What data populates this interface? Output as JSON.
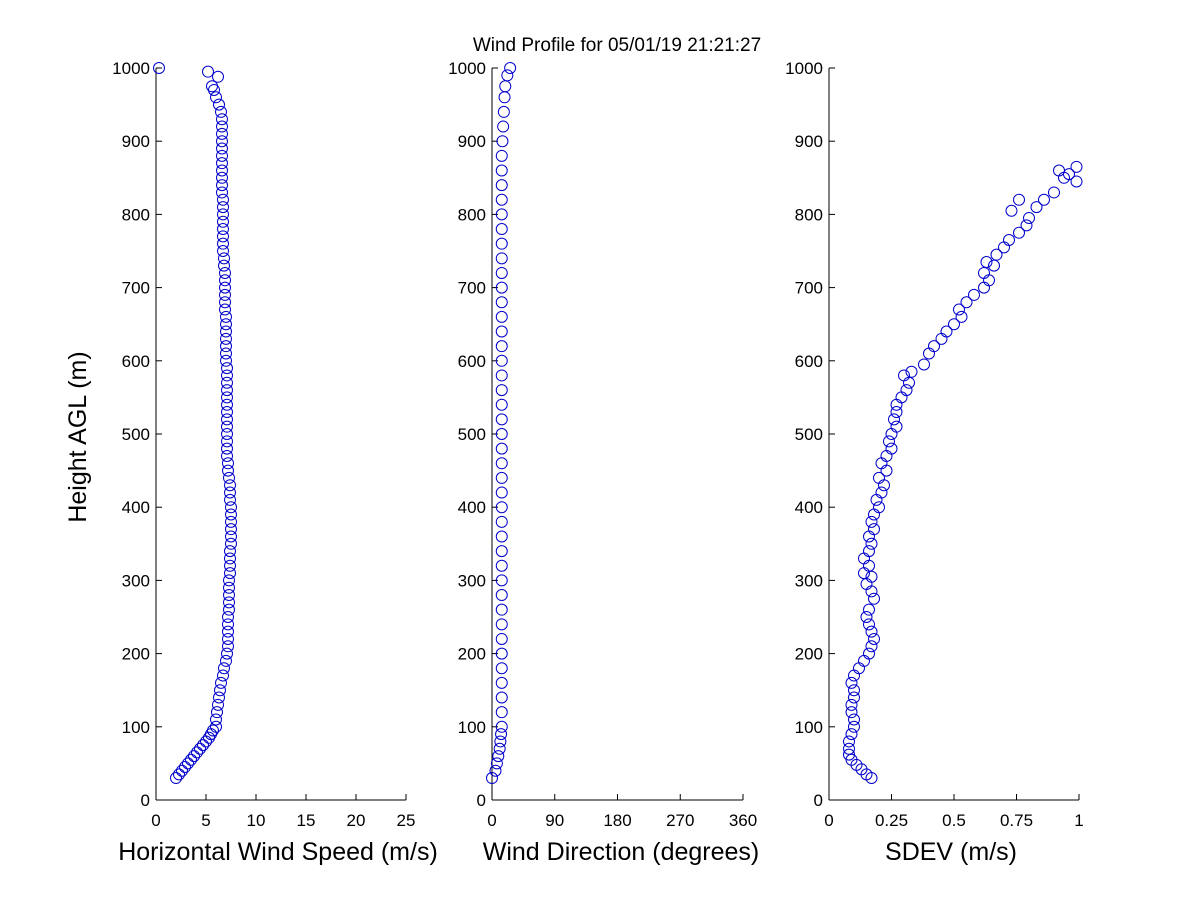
{
  "chart_data": {
    "title": "Wind Profile for  05/01/19 21:21:27",
    "ylabel": "Height AGL (m)",
    "ylim": [
      0,
      1000
    ],
    "yticks": [
      0,
      100,
      200,
      300,
      400,
      500,
      600,
      700,
      800,
      900,
      1000
    ],
    "marker_color": "#0000cc",
    "panels": [
      {
        "type": "scatter",
        "xlabel": "Horizontal Wind Speed (m/s)",
        "xlim": [
          0,
          25
        ],
        "xticks": [
          "0",
          "5",
          "10",
          "15",
          "20",
          "25"
        ],
        "xtick_values": [
          0,
          5,
          10,
          15,
          20,
          25
        ],
        "points": [
          [
            2.0,
            30
          ],
          [
            2.3,
            35
          ],
          [
            2.6,
            40
          ],
          [
            2.9,
            45
          ],
          [
            3.2,
            50
          ],
          [
            3.5,
            55
          ],
          [
            3.8,
            60
          ],
          [
            4.1,
            65
          ],
          [
            4.4,
            70
          ],
          [
            4.7,
            75
          ],
          [
            5.0,
            80
          ],
          [
            5.3,
            85
          ],
          [
            5.5,
            90
          ],
          [
            5.7,
            95
          ],
          [
            6.0,
            100
          ],
          [
            6.0,
            110
          ],
          [
            6.1,
            120
          ],
          [
            6.2,
            130
          ],
          [
            6.3,
            140
          ],
          [
            6.4,
            150
          ],
          [
            6.5,
            160
          ],
          [
            6.7,
            170
          ],
          [
            6.8,
            180
          ],
          [
            7.0,
            190
          ],
          [
            7.1,
            200
          ],
          [
            7.2,
            210
          ],
          [
            7.2,
            220
          ],
          [
            7.2,
            230
          ],
          [
            7.2,
            240
          ],
          [
            7.2,
            250
          ],
          [
            7.3,
            260
          ],
          [
            7.3,
            270
          ],
          [
            7.3,
            280
          ],
          [
            7.3,
            290
          ],
          [
            7.3,
            300
          ],
          [
            7.4,
            310
          ],
          [
            7.4,
            320
          ],
          [
            7.4,
            330
          ],
          [
            7.4,
            340
          ],
          [
            7.5,
            350
          ],
          [
            7.5,
            360
          ],
          [
            7.5,
            370
          ],
          [
            7.5,
            380
          ],
          [
            7.5,
            390
          ],
          [
            7.5,
            400
          ],
          [
            7.4,
            410
          ],
          [
            7.4,
            420
          ],
          [
            7.4,
            430
          ],
          [
            7.3,
            440
          ],
          [
            7.2,
            450
          ],
          [
            7.2,
            460
          ],
          [
            7.1,
            470
          ],
          [
            7.1,
            480
          ],
          [
            7.1,
            490
          ],
          [
            7.1,
            500
          ],
          [
            7.1,
            510
          ],
          [
            7.1,
            520
          ],
          [
            7.1,
            530
          ],
          [
            7.1,
            540
          ],
          [
            7.1,
            550
          ],
          [
            7.1,
            560
          ],
          [
            7.1,
            570
          ],
          [
            7.1,
            580
          ],
          [
            7.1,
            590
          ],
          [
            7.0,
            600
          ],
          [
            7.0,
            610
          ],
          [
            7.0,
            620
          ],
          [
            7.0,
            630
          ],
          [
            7.0,
            640
          ],
          [
            7.0,
            650
          ],
          [
            7.0,
            660
          ],
          [
            6.9,
            670
          ],
          [
            6.9,
            680
          ],
          [
            6.9,
            690
          ],
          [
            6.9,
            700
          ],
          [
            6.9,
            710
          ],
          [
            6.9,
            720
          ],
          [
            6.8,
            730
          ],
          [
            6.8,
            740
          ],
          [
            6.7,
            750
          ],
          [
            6.7,
            760
          ],
          [
            6.7,
            770
          ],
          [
            6.7,
            780
          ],
          [
            6.7,
            790
          ],
          [
            6.7,
            800
          ],
          [
            6.7,
            810
          ],
          [
            6.7,
            820
          ],
          [
            6.6,
            830
          ],
          [
            6.6,
            840
          ],
          [
            6.6,
            850
          ],
          [
            6.6,
            860
          ],
          [
            6.6,
            870
          ],
          [
            6.6,
            880
          ],
          [
            6.6,
            890
          ],
          [
            6.6,
            900
          ],
          [
            6.6,
            910
          ],
          [
            6.6,
            920
          ],
          [
            6.6,
            930
          ],
          [
            6.5,
            940
          ],
          [
            6.3,
            950
          ],
          [
            6.0,
            960
          ],
          [
            5.8,
            970
          ],
          [
            5.6,
            975
          ],
          [
            6.2,
            988
          ],
          [
            5.2,
            995
          ],
          [
            0.3,
            1000
          ]
        ]
      },
      {
        "type": "scatter",
        "xlabel": "Wind Direction (degrees)",
        "xlim": [
          0,
          360
        ],
        "xticks": [
          "0",
          "90",
          "180",
          "270",
          "360"
        ],
        "xtick_values": [
          0,
          90,
          180,
          270,
          360
        ],
        "points": [
          [
            0,
            30
          ],
          [
            5,
            40
          ],
          [
            7,
            50
          ],
          [
            9,
            60
          ],
          [
            11,
            70
          ],
          [
            12,
            80
          ],
          [
            13,
            90
          ],
          [
            14,
            100
          ],
          [
            14,
            120
          ],
          [
            14,
            140
          ],
          [
            14,
            160
          ],
          [
            14,
            180
          ],
          [
            14,
            200
          ],
          [
            14,
            220
          ],
          [
            14,
            240
          ],
          [
            14,
            260
          ],
          [
            14,
            280
          ],
          [
            14,
            300
          ],
          [
            14,
            320
          ],
          [
            14,
            340
          ],
          [
            14,
            360
          ],
          [
            14,
            380
          ],
          [
            14,
            400
          ],
          [
            14,
            420
          ],
          [
            14,
            440
          ],
          [
            14,
            460
          ],
          [
            14,
            480
          ],
          [
            14,
            500
          ],
          [
            14,
            520
          ],
          [
            14,
            540
          ],
          [
            14,
            560
          ],
          [
            14,
            580
          ],
          [
            14,
            600
          ],
          [
            14,
            620
          ],
          [
            14,
            640
          ],
          [
            14,
            660
          ],
          [
            14,
            680
          ],
          [
            14,
            700
          ],
          [
            14,
            720
          ],
          [
            14,
            740
          ],
          [
            14,
            760
          ],
          [
            14,
            780
          ],
          [
            14,
            800
          ],
          [
            14,
            820
          ],
          [
            14,
            840
          ],
          [
            14,
            860
          ],
          [
            14,
            880
          ],
          [
            15,
            900
          ],
          [
            16,
            920
          ],
          [
            17,
            940
          ],
          [
            18,
            960
          ],
          [
            19,
            975
          ],
          [
            22,
            990
          ],
          [
            26,
            1000
          ]
        ]
      },
      {
        "type": "scatter",
        "xlabel": "SDEV  (m/s)",
        "xlim": [
          0,
          1
        ],
        "xticks": [
          "0",
          "0.25",
          "0.5",
          "0.75",
          "1"
        ],
        "xtick_values": [
          0,
          0.25,
          0.5,
          0.75,
          1
        ],
        "points": [
          [
            0.17,
            30
          ],
          [
            0.15,
            35
          ],
          [
            0.13,
            42
          ],
          [
            0.11,
            48
          ],
          [
            0.09,
            55
          ],
          [
            0.08,
            62
          ],
          [
            0.08,
            70
          ],
          [
            0.08,
            80
          ],
          [
            0.09,
            90
          ],
          [
            0.1,
            100
          ],
          [
            0.1,
            110
          ],
          [
            0.09,
            120
          ],
          [
            0.09,
            130
          ],
          [
            0.1,
            140
          ],
          [
            0.1,
            150
          ],
          [
            0.09,
            160
          ],
          [
            0.1,
            170
          ],
          [
            0.12,
            180
          ],
          [
            0.14,
            190
          ],
          [
            0.16,
            200
          ],
          [
            0.17,
            210
          ],
          [
            0.18,
            220
          ],
          [
            0.17,
            230
          ],
          [
            0.16,
            240
          ],
          [
            0.15,
            250
          ],
          [
            0.16,
            260
          ],
          [
            0.18,
            275
          ],
          [
            0.17,
            285
          ],
          [
            0.15,
            295
          ],
          [
            0.17,
            305
          ],
          [
            0.14,
            310
          ],
          [
            0.16,
            320
          ],
          [
            0.14,
            330
          ],
          [
            0.16,
            340
          ],
          [
            0.17,
            350
          ],
          [
            0.16,
            360
          ],
          [
            0.18,
            370
          ],
          [
            0.17,
            380
          ],
          [
            0.18,
            390
          ],
          [
            0.2,
            400
          ],
          [
            0.19,
            410
          ],
          [
            0.21,
            420
          ],
          [
            0.22,
            430
          ],
          [
            0.2,
            440
          ],
          [
            0.23,
            450
          ],
          [
            0.21,
            460
          ],
          [
            0.23,
            470
          ],
          [
            0.25,
            480
          ],
          [
            0.24,
            490
          ],
          [
            0.25,
            500
          ],
          [
            0.27,
            510
          ],
          [
            0.26,
            520
          ],
          [
            0.27,
            530
          ],
          [
            0.27,
            540
          ],
          [
            0.29,
            550
          ],
          [
            0.31,
            560
          ],
          [
            0.32,
            570
          ],
          [
            0.3,
            580
          ],
          [
            0.33,
            585
          ],
          [
            0.38,
            595
          ],
          [
            0.4,
            610
          ],
          [
            0.42,
            620
          ],
          [
            0.45,
            630
          ],
          [
            0.47,
            640
          ],
          [
            0.5,
            650
          ],
          [
            0.53,
            660
          ],
          [
            0.52,
            670
          ],
          [
            0.55,
            680
          ],
          [
            0.58,
            690
          ],
          [
            0.62,
            700
          ],
          [
            0.64,
            710
          ],
          [
            0.62,
            720
          ],
          [
            0.66,
            730
          ],
          [
            0.63,
            735
          ],
          [
            0.67,
            745
          ],
          [
            0.7,
            755
          ],
          [
            0.72,
            765
          ],
          [
            0.76,
            775
          ],
          [
            0.79,
            785
          ],
          [
            0.8,
            795
          ],
          [
            0.73,
            805
          ],
          [
            0.83,
            810
          ],
          [
            0.86,
            820
          ],
          [
            0.76,
            820
          ],
          [
            0.9,
            830
          ],
          [
            0.99,
            845
          ],
          [
            0.94,
            850
          ],
          [
            0.96,
            855
          ],
          [
            0.92,
            860
          ],
          [
            0.99,
            865
          ]
        ]
      }
    ]
  }
}
